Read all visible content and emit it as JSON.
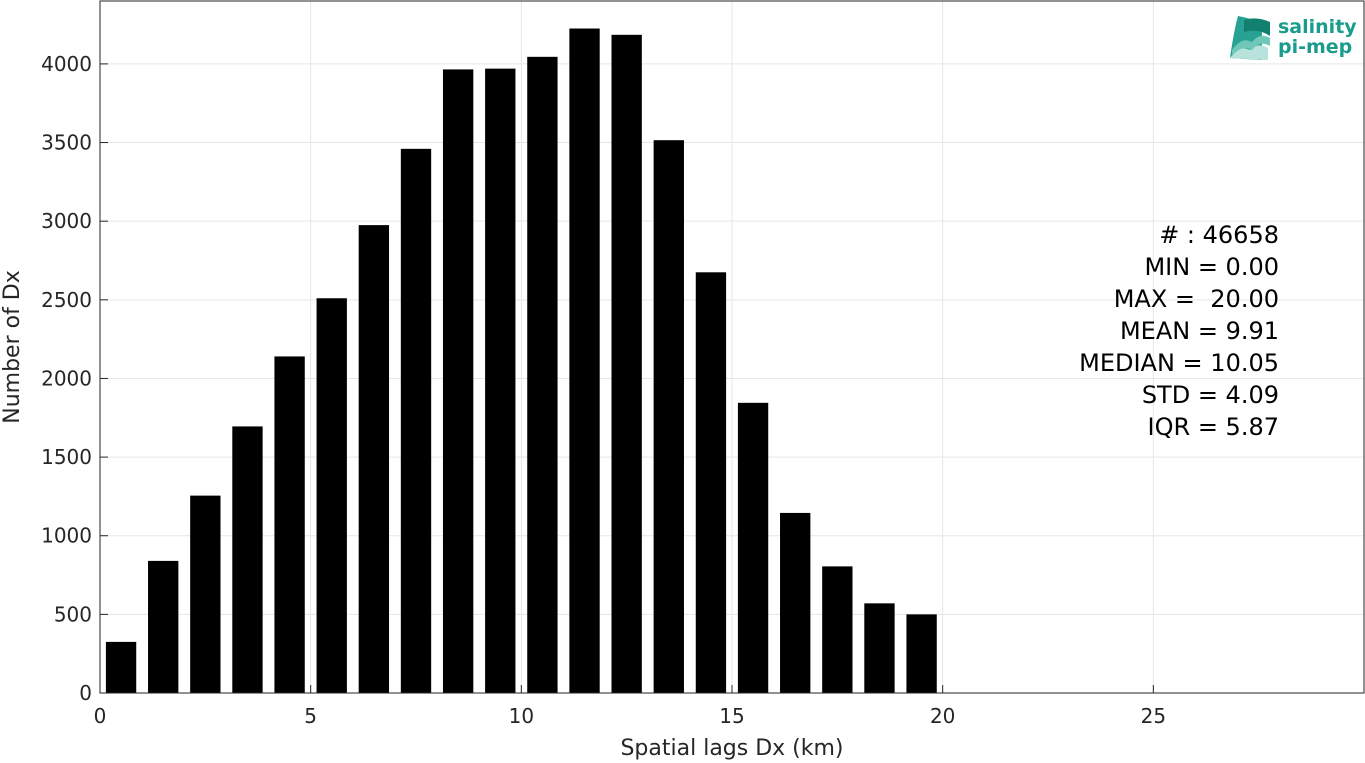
{
  "chart_data": {
    "type": "bar",
    "x": [
      0.5,
      1.5,
      2.5,
      3.5,
      4.5,
      5.5,
      6.5,
      7.5,
      8.5,
      9.5,
      10.5,
      11.5,
      12.5,
      13.5,
      14.5,
      15.5,
      16.5,
      17.5,
      18.5,
      19.5
    ],
    "values": [
      325,
      840,
      1255,
      1695,
      2140,
      2510,
      2975,
      3460,
      3965,
      3970,
      4045,
      4225,
      4185,
      3515,
      2675,
      1845,
      1145,
      805,
      570,
      500
    ],
    "xlabel": "Spatial lags Dx (km)",
    "ylabel": "Number of Dx",
    "xlim": [
      0,
      30
    ],
    "ylim": [
      0,
      4400
    ],
    "xticks": [
      0,
      5,
      10,
      15,
      20,
      25
    ],
    "yticks": [
      0,
      500,
      1000,
      1500,
      2000,
      2500,
      3000,
      3500,
      4000
    ],
    "grid": true,
    "bar_color": "#000000",
    "stats_lines": [
      "# : 46658",
      "MIN = 0.00",
      "MAX =  20.00",
      "MEAN = 9.91",
      "MEDIAN = 10.05",
      "STD = 4.09",
      "IQR = 5.87"
    ]
  },
  "logo": {
    "line1": "salinity",
    "line2": "pi-mep",
    "color": "#1a9c8c"
  }
}
